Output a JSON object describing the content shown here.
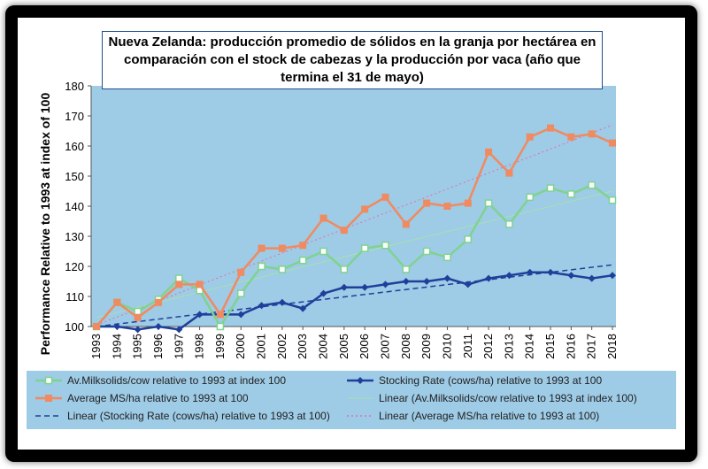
{
  "chart_data": {
    "type": "line",
    "title": "Nueva Zelanda: producción promedio de sólidos en la granja por hectárea en comparación con el stock de cabezas y la producción por vaca (año que termina el 31 de mayo)",
    "xlabel": "",
    "ylabel": "Performance Relative to 1993 at index of 100",
    "ylim": [
      100,
      180
    ],
    "yticks": [
      100,
      110,
      120,
      130,
      140,
      150,
      160,
      170,
      180
    ],
    "categories": [
      "1993",
      "1994",
      "1995",
      "1996",
      "1997",
      "1998",
      "1999",
      "2000",
      "2001",
      "2002",
      "2003",
      "2004",
      "2005",
      "2006",
      "2007",
      "2008",
      "2009",
      "2010",
      "2011",
      "2012",
      "2013",
      "2014",
      "2015",
      "2016",
      "2017",
      "2018"
    ],
    "series": [
      {
        "name": "Av.Milksolids/cow relative to 1993 at index 100",
        "color": "#7fd38f",
        "marker": "square-open",
        "values": [
          100,
          108,
          105,
          109,
          116,
          112,
          100,
          111,
          120,
          119,
          122,
          125,
          119,
          126,
          127,
          119,
          125,
          123,
          129,
          141,
          134,
          143,
          146,
          144,
          147,
          142
        ]
      },
      {
        "name": "Stocking Rate (cows/ha) relative to 1993 at 100",
        "color": "#1f3f9a",
        "marker": "diamond",
        "values": [
          100,
          100,
          99,
          100,
          99,
          104,
          104,
          104,
          107,
          108,
          106,
          111,
          113,
          113,
          114,
          115,
          115,
          116,
          114,
          116,
          117,
          118,
          118,
          117,
          116,
          117
        ]
      },
      {
        "name": "Average MS/ha relative to 1993 at 100",
        "color": "#f08a60",
        "marker": "square",
        "values": [
          100,
          108,
          103,
          108,
          114,
          114,
          104,
          118,
          126,
          126,
          127,
          136,
          132,
          139,
          143,
          134,
          141,
          140,
          141,
          158,
          151,
          163,
          166,
          163,
          164,
          161
        ]
      }
    ],
    "trendlines": [
      {
        "name": "Linear (Av.Milksolids/cow relative to 1993 at index 100)",
        "color": "#a8e0b0",
        "style": "solid",
        "start": 103.0,
        "end": 145.0
      },
      {
        "name": "Linear (Stocking Rate (cows/ha) relative to 1993 at 100)",
        "color": "#1f3f9a",
        "style": "dashed",
        "start": 100.0,
        "end": 120.5
      },
      {
        "name": "Linear (Average MS/ha relative to 1993 at 100)",
        "color": "#e070b0",
        "style": "dotted",
        "start": 100.5,
        "end": 167.0
      }
    ],
    "legend_position": "bottom",
    "grid": false,
    "colors": {
      "plot_background": "#9ecbe6",
      "legend_background": "#9ecbe6",
      "frame": "#000000"
    }
  }
}
